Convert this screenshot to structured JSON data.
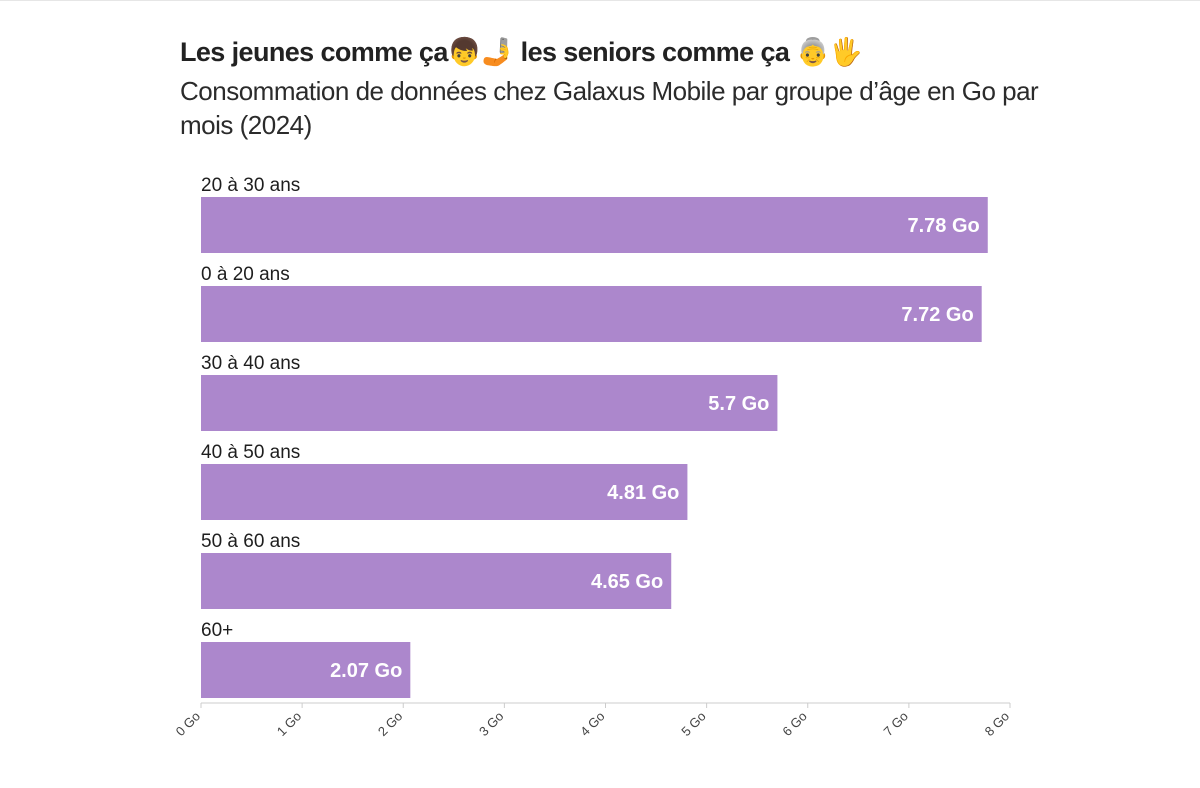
{
  "title": "Les jeunes comme ça👦🤳 les seniors comme ça 👵🖐",
  "subtitle": "Consommation de données chez Galaxus Mobile par groupe d’âge en Go par mois (2024)",
  "colors": {
    "bar": "#ac87cc",
    "axis": "#cccccc",
    "value_label": "#ffffff"
  },
  "chart_data": {
    "type": "bar",
    "orientation": "horizontal",
    "categories": [
      "20 à 30 ans",
      "0 à 20 ans",
      "30 à 40 ans",
      "40 à 50 ans",
      "50 à 60 ans",
      "60+"
    ],
    "values": [
      7.78,
      7.72,
      5.7,
      4.81,
      4.65,
      2.07
    ],
    "value_labels": [
      "7.78 Go",
      "7.72 Go",
      "5.7 Go",
      "4.81 Go",
      "4.65 Go",
      "2.07 Go"
    ],
    "xlim": [
      0,
      8
    ],
    "x_ticks": [
      0,
      1,
      2,
      3,
      4,
      5,
      6,
      7,
      8
    ],
    "x_tick_labels": [
      "0 Go",
      "1 Go",
      "2 Go",
      "3 Go",
      "4 Go",
      "5 Go",
      "6 Go",
      "7 Go",
      "8 Go"
    ],
    "grid": false,
    "legend": "none"
  }
}
